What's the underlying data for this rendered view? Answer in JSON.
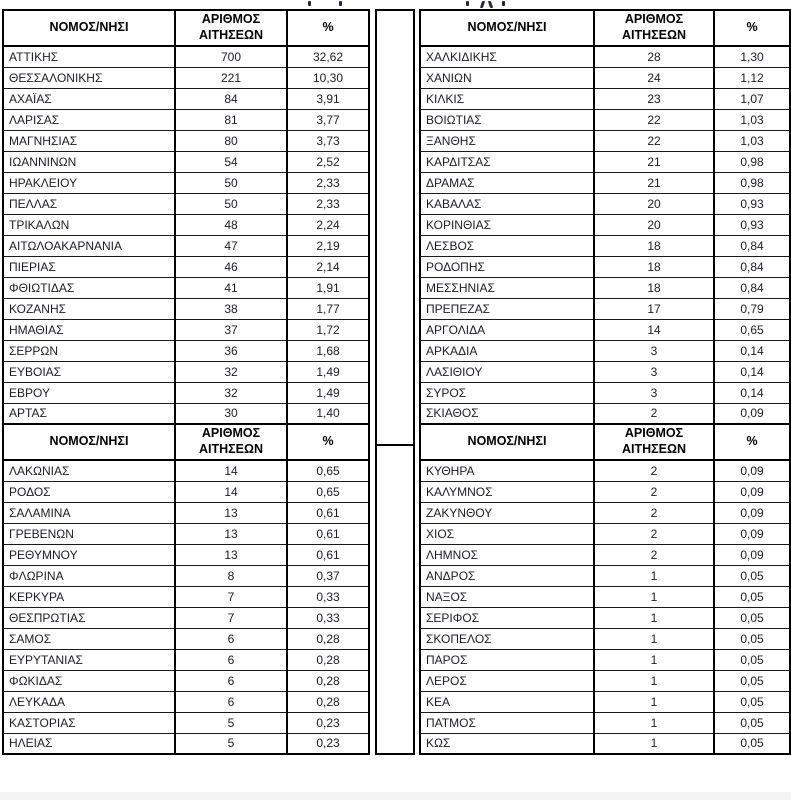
{
  "document": {
    "description_title_cropped": "",
    "columns": {
      "region": "ΝΟΜΟΣ/ΝΗΣΙ",
      "applications": "ΑΡΙΘΜΟΣ ΑΙΤΗΣΕΩΝ",
      "percent": "%"
    },
    "tables": {
      "top_left": [
        [
          "ΑΤΤΙΚΗΣ",
          "700",
          "32,62"
        ],
        [
          "ΘΕΣΣΑΛΟΝΙΚΗΣ",
          "221",
          "10,30"
        ],
        [
          "ΑΧΑΪΑΣ",
          "84",
          "3,91"
        ],
        [
          "ΛΑΡΙΣΑΣ",
          "81",
          "3,77"
        ],
        [
          "ΜΑΓΝΗΣΙΑΣ",
          "80",
          "3,73"
        ],
        [
          "ΙΩΑΝΝΙΝΩΝ",
          "54",
          "2,52"
        ],
        [
          "ΗΡΑΚΛΕΙΟΥ",
          "50",
          "2,33"
        ],
        [
          "ΠΕΛΛΑΣ",
          "50",
          "2,33"
        ],
        [
          "ΤΡΙΚΑΛΩΝ",
          "48",
          "2,24"
        ],
        [
          "ΑΙΤΩΛΟΑΚΑΡΝΑΝΙΑ",
          "47",
          "2,19"
        ],
        [
          "ΠΙΕΡΙΑΣ",
          "46",
          "2,14"
        ],
        [
          "ΦΘΙΩΤΙΔΑΣ",
          "41",
          "1,91"
        ],
        [
          "ΚΟΖΑΝΗΣ",
          "38",
          "1,77"
        ],
        [
          "ΗΜΑΘΙΑΣ",
          "37",
          "1,72"
        ],
        [
          "ΣΕΡΡΩΝ",
          "36",
          "1,68"
        ],
        [
          "ΕΥΒΟΙΑΣ",
          "32",
          "1,49"
        ],
        [
          "ΕΒΡΟΥ",
          "32",
          "1,49"
        ],
        [
          "ΑΡΤΑΣ",
          "30",
          "1,40"
        ]
      ],
      "top_right": [
        [
          "ΧΑΛΚΙΔΙΚΗΣ",
          "28",
          "1,30"
        ],
        [
          "ΧΑΝΙΩΝ",
          "24",
          "1,12"
        ],
        [
          "ΚΙΛΚΙΣ",
          "23",
          "1,07"
        ],
        [
          "ΒΟΙΩΤΙΑΣ",
          "22",
          "1,03"
        ],
        [
          "ΞΑΝΘΗΣ",
          "22",
          "1,03"
        ],
        [
          "ΚΑΡΔΙΤΣΑΣ",
          "21",
          "0,98"
        ],
        [
          "ΔΡΑΜΑΣ",
          "21",
          "0,98"
        ],
        [
          "ΚΑΒΑΛΑΣ",
          "20",
          "0,93"
        ],
        [
          "ΚΟΡΙΝΘΙΑΣ",
          "20",
          "0,93"
        ],
        [
          "ΛΕΣΒΟΣ",
          "18",
          "0,84"
        ],
        [
          "ΡΟΔΟΠΗΣ",
          "18",
          "0,84"
        ],
        [
          "ΜΕΣΣΗΝΙΑΣ",
          "18",
          "0,84"
        ],
        [
          "ΠΡΕΠΕΖΑΣ",
          "17",
          "0,79"
        ],
        [
          "ΑΡΓΟΛΙΔΑ",
          "14",
          "0,65"
        ],
        [
          "ΑΡΚΑΔΙΑ",
          "3",
          "0,14"
        ],
        [
          "ΛΑΣΙΘΙΟΥ",
          "3",
          "0,14"
        ],
        [
          "ΣΥΡΟΣ",
          "3",
          "0,14"
        ],
        [
          "ΣΚΙΑΘΟΣ",
          "2",
          "0,09"
        ]
      ],
      "bottom_left": [
        [
          "ΛΑΚΩΝΙΑΣ",
          "14",
          "0,65"
        ],
        [
          "ΡΟΔΟΣ",
          "14",
          "0,65"
        ],
        [
          "ΣΑΛΑΜΙΝΑ",
          "13",
          "0,61"
        ],
        [
          "ΓΡΕΒΕΝΩΝ",
          "13",
          "0,61"
        ],
        [
          "ΡΕΘΥΜΝΟΥ",
          "13",
          "0,61"
        ],
        [
          "ΦΛΩΡΙΝΑ",
          "8",
          "0,37"
        ],
        [
          "ΚΕΡΚΥΡΑ",
          "7",
          "0,33"
        ],
        [
          "ΘΕΣΠΡΩΤΙΑΣ",
          "7",
          "0,33"
        ],
        [
          "ΣΑΜΟΣ",
          "6",
          "0,28"
        ],
        [
          "ΕΥΡΥΤΑΝΙΑΣ",
          "6",
          "0,28"
        ],
        [
          "ΦΩΚΙΔΑΣ",
          "6",
          "0,28"
        ],
        [
          "ΛΕΥΚΑΔΑ",
          "6",
          "0,28"
        ],
        [
          "ΚΑΣΤΟΡΙΑΣ",
          "5",
          "0,23"
        ],
        [
          "ΗΛΕΙΑΣ",
          "5",
          "0,23"
        ]
      ],
      "bottom_right": [
        [
          "ΚΥΘΗΡΑ",
          "2",
          "0,09"
        ],
        [
          "ΚΑΛΥΜΝΟΣ",
          "2",
          "0,09"
        ],
        [
          "ΖΑΚΥΝΘΟΥ",
          "2",
          "0,09"
        ],
        [
          "ΧΙΟΣ",
          "2",
          "0,09"
        ],
        [
          "ΛΗΜΝΟΣ",
          "2",
          "0,09"
        ],
        [
          "ΑΝΔΡΟΣ",
          "1",
          "0,05"
        ],
        [
          "ΝΑΞΟΣ",
          "1",
          "0,05"
        ],
        [
          "ΣΕΡΙΦΟΣ",
          "1",
          "0,05"
        ],
        [
          "ΣΚΟΠΕΛΟΣ",
          "1",
          "0,05"
        ],
        [
          "ΠΑΡΟΣ",
          "1",
          "0,05"
        ],
        [
          "ΛΕΡΟΣ",
          "1",
          "0,05"
        ],
        [
          "ΚΕΑ",
          "1",
          "0,05"
        ],
        [
          "ΠΑΤΜΟΣ",
          "1",
          "0,05"
        ],
        [
          "ΚΩΣ",
          "1",
          "0,05"
        ]
      ]
    },
    "colors": {
      "border": "#000000",
      "row_line": "#1a1a1a",
      "text": "#1c1c24",
      "header_text": "#000000",
      "background": "#ffffff",
      "page_margin": "#f3f3f3"
    }
  }
}
